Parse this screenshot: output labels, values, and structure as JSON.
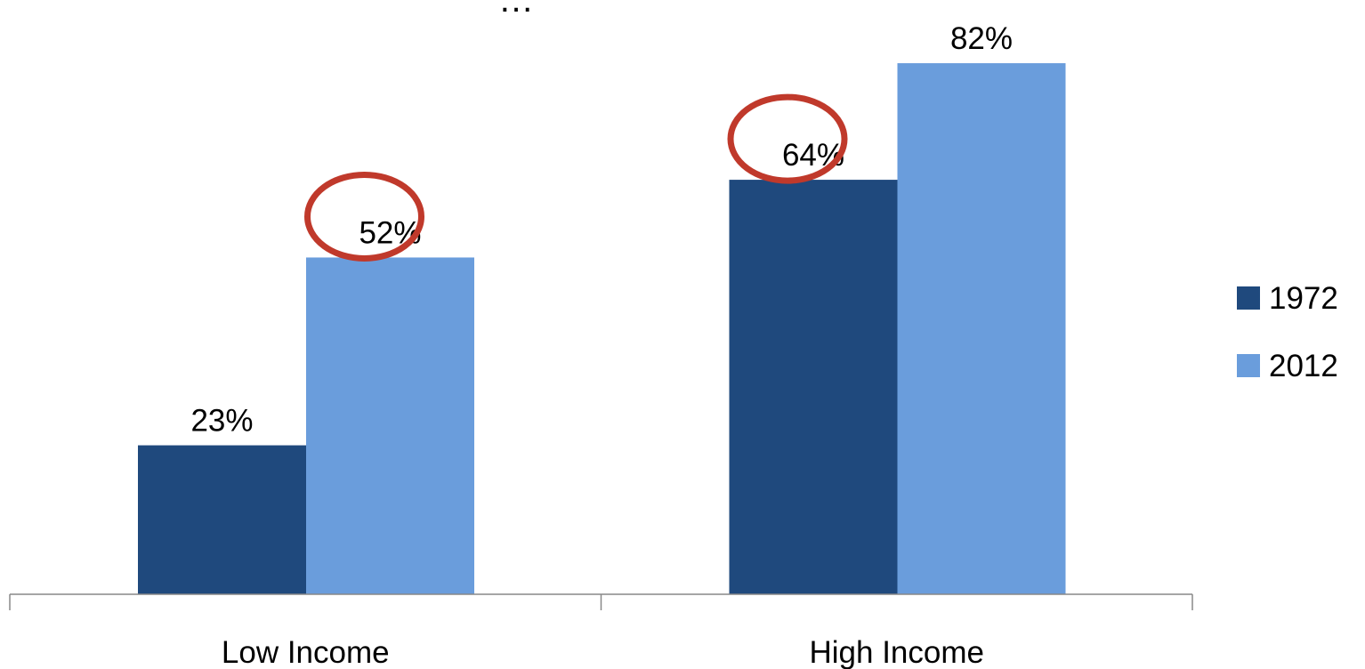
{
  "chart_data": {
    "type": "bar",
    "title": "",
    "xlabel": "",
    "ylabel": "",
    "categories": [
      "Low Income",
      "High Income"
    ],
    "series": [
      {
        "name": "1972",
        "values": [
          23,
          64
        ],
        "labels": [
          "23%",
          "64%"
        ],
        "color": "#1F497D"
      },
      {
        "name": "2012",
        "values": [
          52,
          82
        ],
        "labels": [
          "52%",
          "82%"
        ],
        "color": "#6A9DDC"
      }
    ],
    "ylim": [
      0,
      100
    ],
    "grid": false,
    "legend": "right",
    "highlights": [
      {
        "series": "2012",
        "category": "Low Income"
      },
      {
        "series": "1972",
        "category": "High Income"
      }
    ],
    "highlight_color": "#C0392B"
  }
}
